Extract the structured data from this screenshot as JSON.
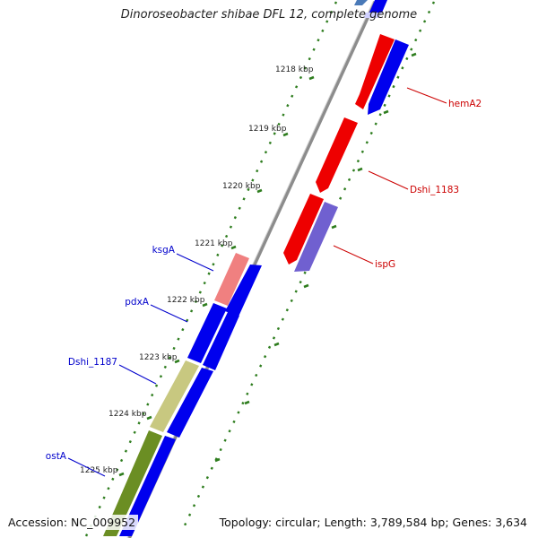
{
  "title": "Dinoroseobacter shibae DFL 12, complete genome",
  "accession": "Accession: NC_009952",
  "topology": "Topology: circular; Length: 3,789,584 bp; Genes: 3,634",
  "ticks": [
    "1218 kbp",
    "1219 kbp",
    "1220 kbp",
    "1221 kbp",
    "1222 kbp",
    "1223 kbp",
    "1224 kbp",
    "1225 kbp"
  ],
  "genes_right": [
    "hemA2",
    "Dshi_1183",
    "ispG"
  ],
  "genes_left": [
    "ksgA",
    "pdxA",
    "Dshi_1187",
    "ostA"
  ],
  "colors": {
    "backbone": "#8c8c8c",
    "tick": "#2e7d1e",
    "forward_gene": "#0000ee",
    "reverse_gene": "#ee0000",
    "ispG": "#7060d0",
    "ksgA": "#f08080",
    "Dshi_1187": "#c8c880",
    "ostA": "#6b8e23",
    "right_label": "#cc0000",
    "left_label": "#0000cc"
  }
}
